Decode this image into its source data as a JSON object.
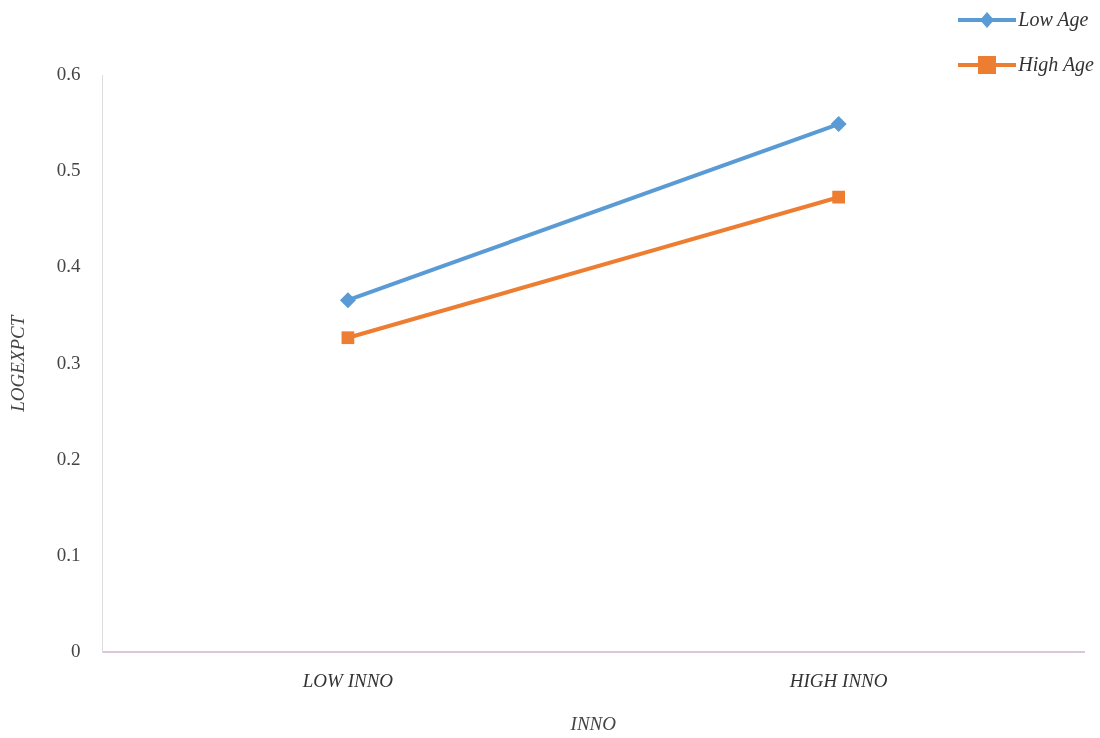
{
  "chart_data": {
    "type": "line",
    "xlabel": "INNO",
    "ylabel": "LOGEXPCT",
    "categories": [
      "LOW INNO",
      "HIGH INNO"
    ],
    "series": [
      {
        "name": "Low Age",
        "color": "#5b9bd5",
        "marker": "diamond",
        "values": [
          0.366,
          0.549
        ]
      },
      {
        "name": "High Age",
        "color": "#ed7d31",
        "marker": "square",
        "values": [
          0.327,
          0.473
        ]
      }
    ],
    "ylim": [
      0,
      0.6
    ],
    "yticks": [
      0,
      0.1,
      0.2,
      0.3,
      0.4,
      0.5,
      0.6
    ],
    "grid": false,
    "legend": "top right"
  }
}
